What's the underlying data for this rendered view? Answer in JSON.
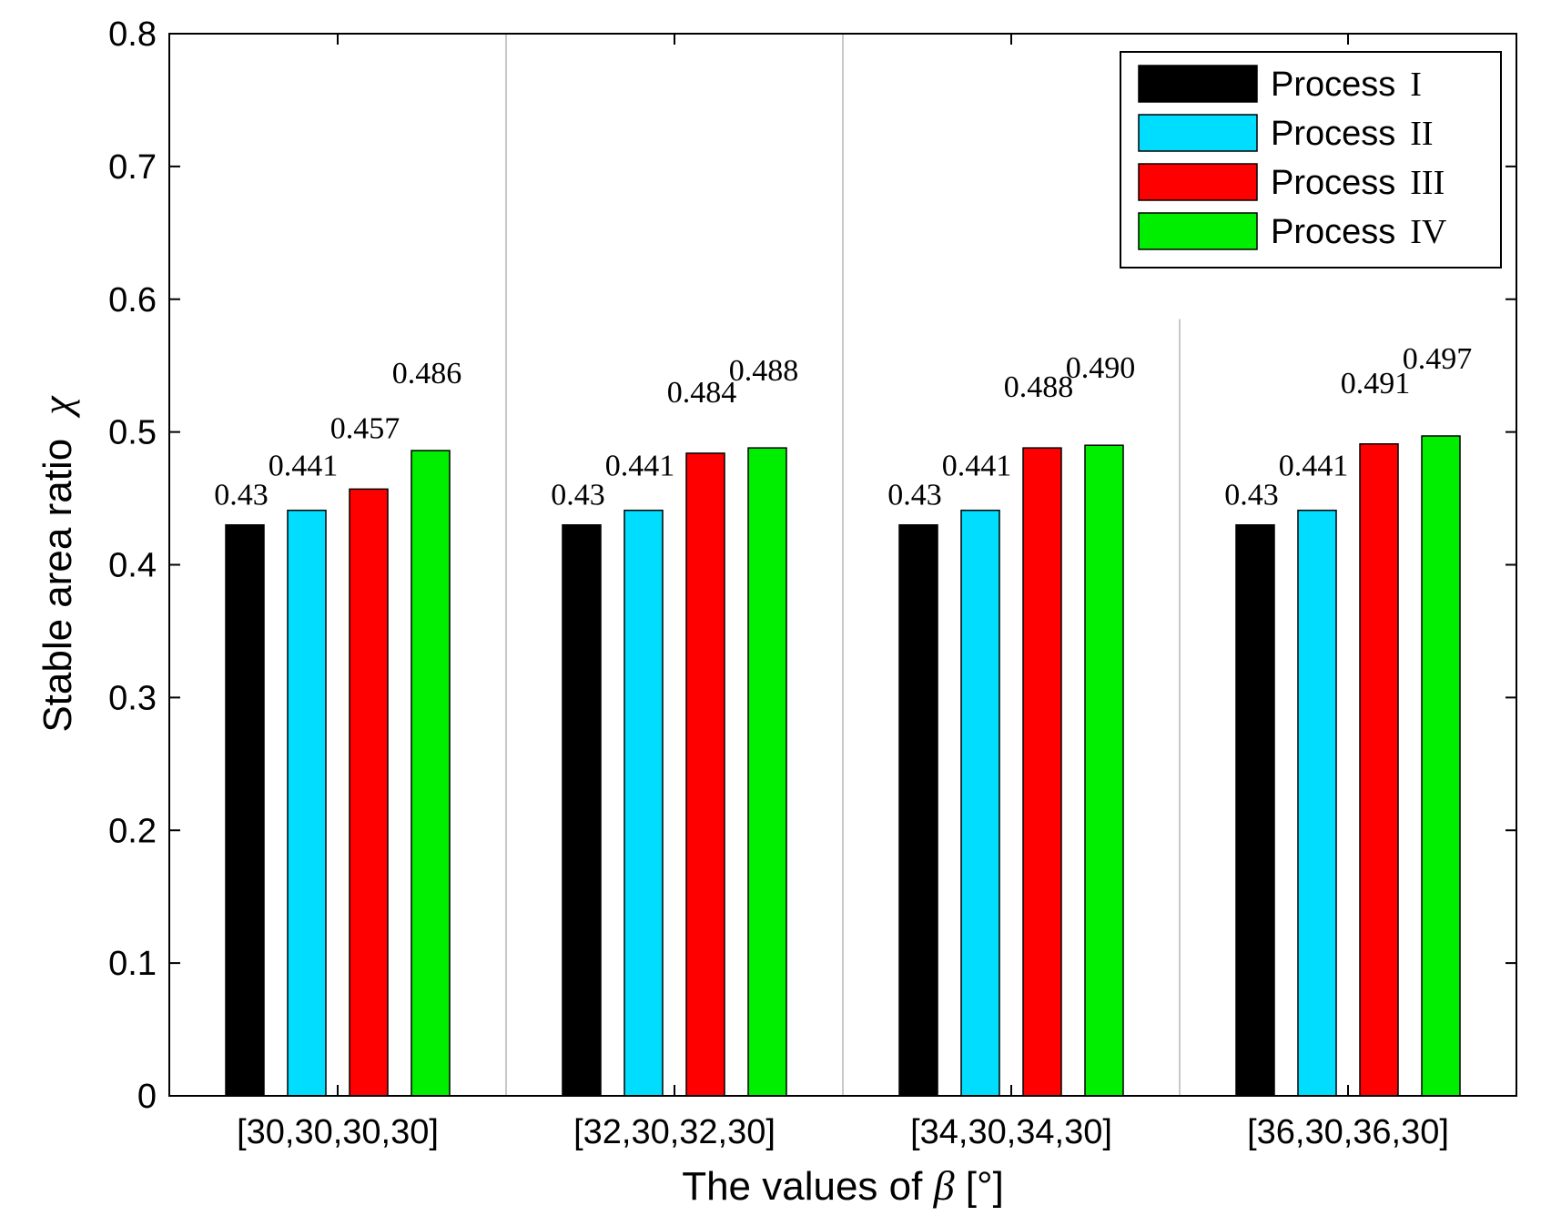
{
  "chart_data": {
    "type": "bar",
    "title": "",
    "xlabel": "The values of",
    "xlabel_symbol": "β",
    "xlabel_unit": "[°]",
    "ylabel": "Stable area ratio",
    "ylabel_symbol": "χ",
    "ylim": [
      0,
      0.8
    ],
    "yticks": [
      "0",
      "0.1",
      "0.2",
      "0.3",
      "0.4",
      "0.5",
      "0.6",
      "0.7",
      "0.8"
    ],
    "categories": [
      "[30,30,30,30]",
      "[32,30,32,30]",
      "[34,30,34,30]",
      "[36,30,36,30]"
    ],
    "series": [
      {
        "name": "Process",
        "roman": "I",
        "color": "#000000",
        "values": [
          0.43,
          0.43,
          0.43,
          0.43
        ],
        "labels": [
          "0.43",
          "0.43",
          "0.43",
          "0.43"
        ]
      },
      {
        "name": "Process",
        "roman": "II",
        "color": "#00DDFF",
        "values": [
          0.441,
          0.441,
          0.441,
          0.441
        ],
        "labels": [
          "0.441",
          "0.441",
          "0.441",
          "0.441"
        ]
      },
      {
        "name": "Process",
        "roman": "III",
        "color": "#FF0000",
        "values": [
          0.457,
          0.484,
          0.488,
          0.491
        ],
        "labels": [
          "0.457",
          "0.484",
          "0.488",
          "0.491"
        ]
      },
      {
        "name": "Process",
        "roman": "IV",
        "color": "#00EE00",
        "values": [
          0.486,
          0.488,
          0.49,
          0.497
        ],
        "labels": [
          "0.486",
          "0.488",
          "0.490",
          "0.497"
        ]
      }
    ],
    "legend_position": "top-right",
    "group_separators": true
  }
}
